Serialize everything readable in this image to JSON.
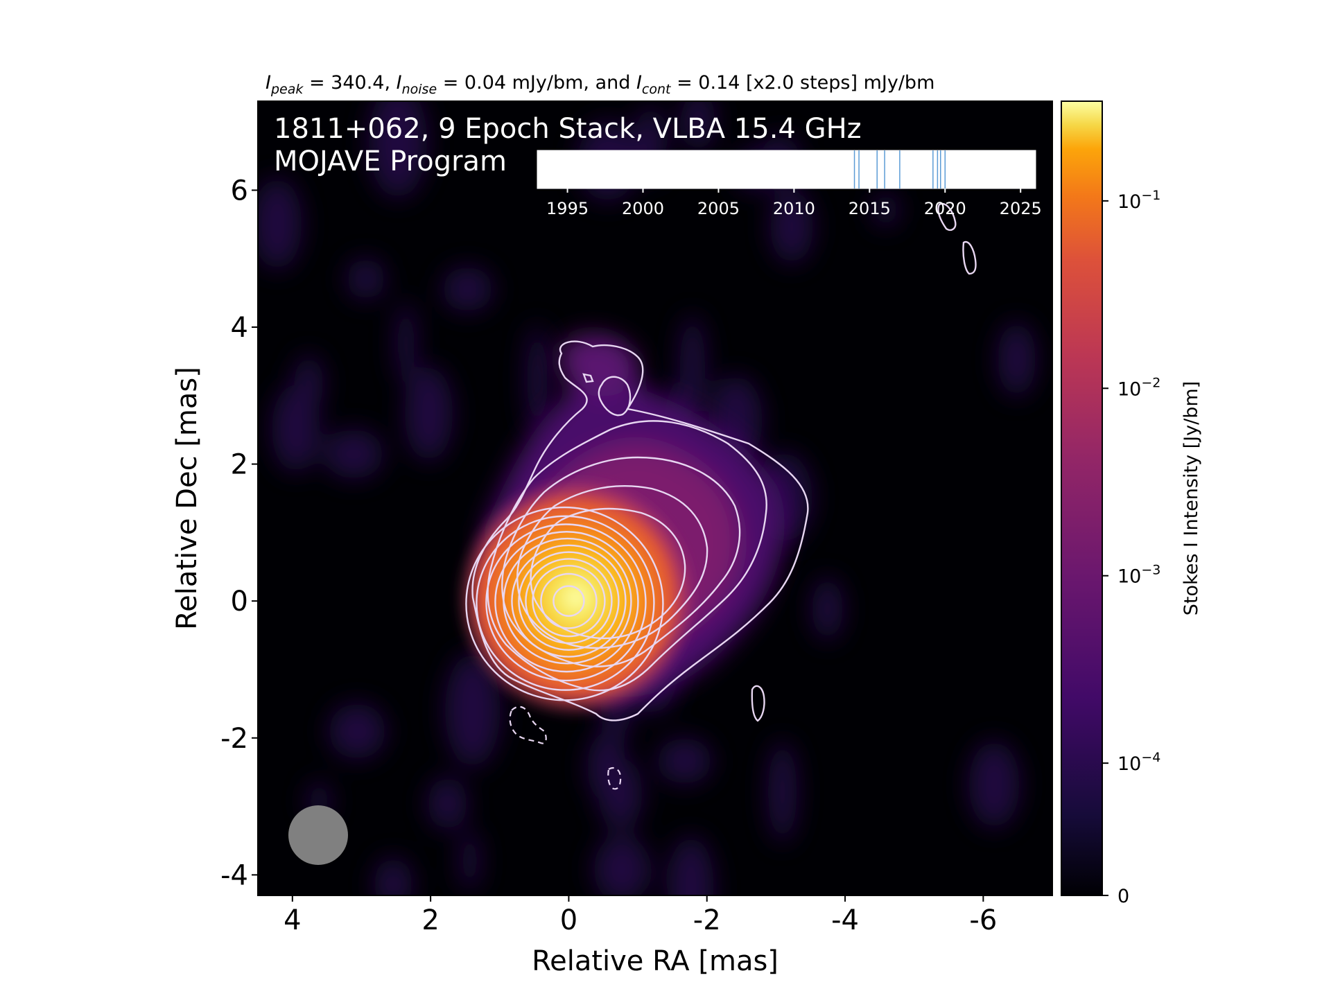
{
  "header": {
    "i_peak_sym": "I",
    "i_peak_sub": "peak",
    "i_peak_val": " = 340.4, ",
    "i_noise_sym": "I",
    "i_noise_sub": "noise",
    "i_noise_val": " = 0.04 mJy/bm, and ",
    "i_cont_sym": "I",
    "i_cont_sub": "cont",
    "i_cont_val": " = 0.14 [x2.0 steps] mJy/bm"
  },
  "chart_data": {
    "type": "heatmap",
    "title_line1": "1811+062, 9 Epoch Stack, VLBA 15.4 GHz",
    "title_line2": "MOJAVE Program",
    "xlabel": "Relative RA [mas]",
    "ylabel": "Relative Dec [mas]",
    "x_axis": {
      "range": [
        4.5,
        -7.0
      ],
      "inverted": true,
      "ticks": [
        4,
        2,
        0,
        -2,
        -4,
        -6
      ],
      "tick_labels": [
        "4",
        "2",
        "0",
        "-2",
        "-4",
        "-6"
      ]
    },
    "y_axis": {
      "range": [
        -4.3,
        7.3
      ],
      "ticks": [
        -4,
        -2,
        0,
        2,
        4,
        6
      ],
      "tick_labels": [
        "-4",
        "-2",
        "0",
        "2",
        "4",
        "6"
      ]
    },
    "peak_position_mas": [
      0,
      0
    ],
    "peak_intensity_mJy_per_beam": 340.4,
    "noise_mJy_per_beam": 0.04,
    "lowest_contour_mJy_per_beam": 0.14,
    "contour_step_factor": 2.0,
    "colormap": "inferno",
    "colorbar": {
      "label": "Stokes I Intensity [Jy/bm]",
      "scale": "log",
      "ticks": [
        {
          "base": "10",
          "exp": "−1",
          "value": 0.1
        },
        {
          "base": "10",
          "exp": "−2",
          "value": 0.01
        },
        {
          "base": "10",
          "exp": "−3",
          "value": 0.001
        },
        {
          "base": "10",
          "exp": "−4",
          "value": 0.0001
        },
        {
          "base": "0",
          "exp": "",
          "value": 0
        }
      ]
    },
    "epoch_timeline": {
      "range": [
        1993,
        2026
      ],
      "ticks": [
        1995,
        2000,
        2005,
        2010,
        2015,
        2020,
        2025
      ],
      "tick_labels": [
        "1995",
        "2000",
        "2005",
        "2010",
        "2015",
        "2020",
        "2025"
      ],
      "epochs": [
        2014.0,
        2014.3,
        2015.5,
        2016.0,
        2017.0,
        2019.2,
        2019.5,
        2019.7,
        2020.0
      ]
    },
    "beam": "circular",
    "colors": {
      "contour": "#e8d7f2",
      "background": "#000004",
      "beam": "#808080",
      "epoch_line": "#5b9bd5"
    }
  }
}
